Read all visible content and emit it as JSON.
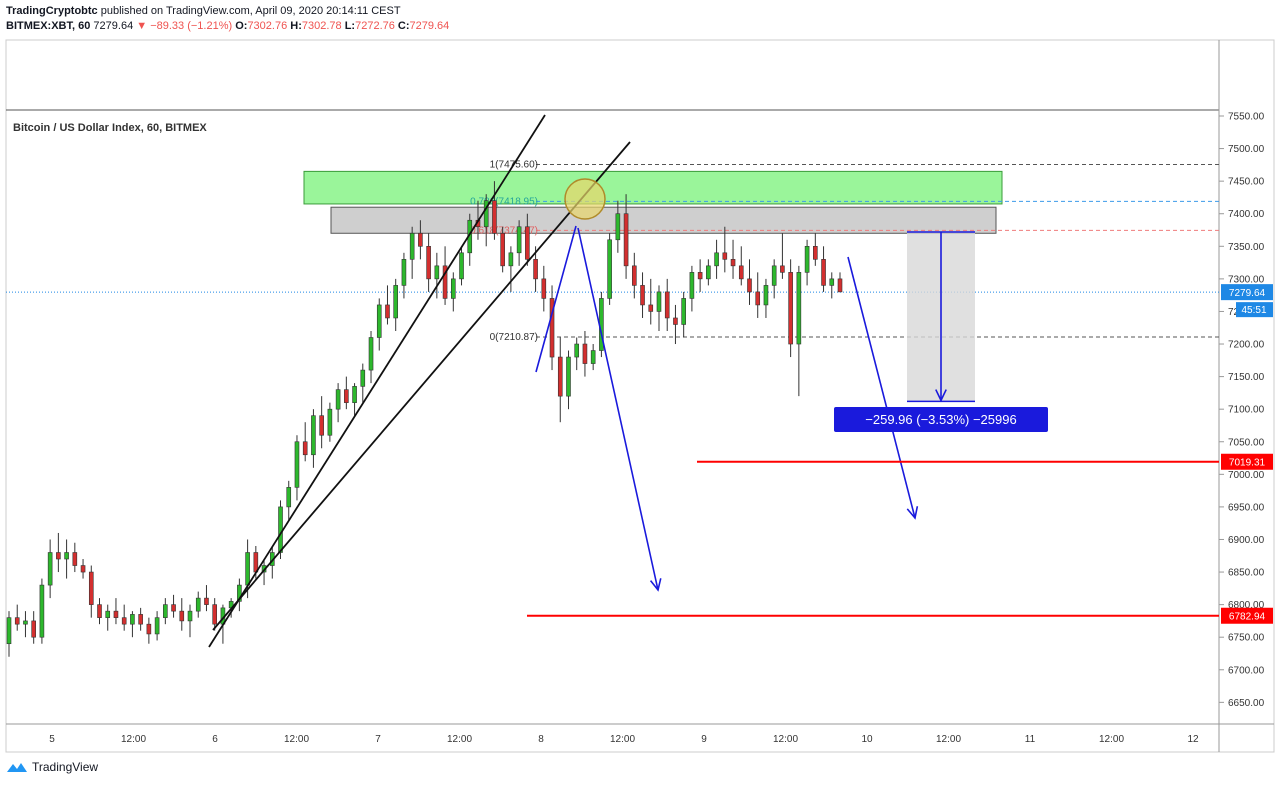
{
  "header": {
    "author": "TradingCryptobtc",
    "published": "published on TradingView.com, April 09, 2020 20:14:11 CEST",
    "symbol": "BITMEX:XBT, 60",
    "price": "7279.64",
    "change": "▼ −89.33 (−1.21%)",
    "o_label": "O:",
    "o_value": "7302.76",
    "h_label": "H:",
    "h_value": "7302.78",
    "l_label": "L:",
    "l_value": "7272.76",
    "c_label": "C:",
    "c_value": "7279.64"
  },
  "footer": {
    "brand": "TradingView"
  },
  "colors": {
    "up": "#2db82d",
    "down": "#d32f2f",
    "arrow": "#1a1adc",
    "support": "#ff0000",
    "zone_green": "#9af59a",
    "zone_gray": "#cfcfcf"
  },
  "chart_data": {
    "type": "candlestick",
    "title": "Bitcoin / US Dollar Index, 60, BITMEX",
    "ylim": [
      6610,
      7565
    ],
    "y_ticks": [
      "7550.00",
      "7500.00",
      "7450.00",
      "7400.00",
      "7350.00",
      "7300.00",
      "7250.00",
      "7200.00",
      "7150.00",
      "7100.00",
      "7050.00",
      "7000.00",
      "6950.00",
      "6900.00",
      "6850.00",
      "6800.00",
      "6750.00",
      "6700.00",
      "6650.00"
    ],
    "y_tick_values": [
      7550,
      7500,
      7450,
      7400,
      7350,
      7300,
      7250,
      7200,
      7150,
      7100,
      7050,
      7000,
      6950,
      6900,
      6850,
      6800,
      6750,
      6700,
      6650
    ],
    "x_labels": [
      "5",
      "12:00",
      "6",
      "12:00",
      "7",
      "12:00",
      "8",
      "12:00",
      "9",
      "12:00",
      "10",
      "12:00",
      "11",
      "12:00",
      "12"
    ],
    "x_label_days": [
      4.0,
      4.5,
      5.0,
      5.5,
      6.0,
      6.5,
      7.0,
      7.5,
      8.0,
      8.5,
      9.0,
      9.5,
      10.0,
      10.5,
      11.0
    ],
    "candles": [
      [
        6740,
        6790,
        6720,
        6780
      ],
      [
        6780,
        6800,
        6760,
        6770
      ],
      [
        6770,
        6790,
        6750,
        6775
      ],
      [
        6775,
        6790,
        6740,
        6750
      ],
      [
        6750,
        6840,
        6740,
        6830
      ],
      [
        6830,
        6900,
        6810,
        6880
      ],
      [
        6880,
        6910,
        6850,
        6870
      ],
      [
        6870,
        6900,
        6840,
        6880
      ],
      [
        6880,
        6895,
        6850,
        6860
      ],
      [
        6860,
        6870,
        6840,
        6850
      ],
      [
        6850,
        6860,
        6780,
        6800
      ],
      [
        6800,
        6810,
        6770,
        6780
      ],
      [
        6780,
        6800,
        6760,
        6790
      ],
      [
        6790,
        6810,
        6770,
        6780
      ],
      [
        6780,
        6800,
        6760,
        6770
      ],
      [
        6770,
        6790,
        6750,
        6785
      ],
      [
        6785,
        6795,
        6760,
        6770
      ],
      [
        6770,
        6780,
        6740,
        6755
      ],
      [
        6755,
        6790,
        6745,
        6780
      ],
      [
        6780,
        6810,
        6770,
        6800
      ],
      [
        6800,
        6815,
        6780,
        6790
      ],
      [
        6790,
        6810,
        6760,
        6775
      ],
      [
        6775,
        6800,
        6750,
        6790
      ],
      [
        6790,
        6820,
        6780,
        6810
      ],
      [
        6810,
        6830,
        6790,
        6800
      ],
      [
        6800,
        6810,
        6760,
        6770
      ],
      [
        6770,
        6800,
        6740,
        6795
      ],
      [
        6795,
        6810,
        6780,
        6805
      ],
      [
        6805,
        6840,
        6790,
        6830
      ],
      [
        6830,
        6900,
        6810,
        6880
      ],
      [
        6880,
        6890,
        6840,
        6850
      ],
      [
        6850,
        6870,
        6830,
        6860
      ],
      [
        6860,
        6890,
        6840,
        6880
      ],
      [
        6880,
        6960,
        6870,
        6950
      ],
      [
        6950,
        6990,
        6930,
        6980
      ],
      [
        6980,
        7060,
        6960,
        7050
      ],
      [
        7050,
        7080,
        7020,
        7030
      ],
      [
        7030,
        7100,
        7010,
        7090
      ],
      [
        7090,
        7120,
        7040,
        7060
      ],
      [
        7060,
        7110,
        7050,
        7100
      ],
      [
        7100,
        7140,
        7080,
        7130
      ],
      [
        7130,
        7150,
        7100,
        7110
      ],
      [
        7110,
        7140,
        7090,
        7135
      ],
      [
        7135,
        7170,
        7110,
        7160
      ],
      [
        7160,
        7220,
        7140,
        7210
      ],
      [
        7210,
        7270,
        7190,
        7260
      ],
      [
        7260,
        7290,
        7230,
        7240
      ],
      [
        7240,
        7300,
        7220,
        7290
      ],
      [
        7290,
        7340,
        7270,
        7330
      ],
      [
        7330,
        7380,
        7300,
        7370
      ],
      [
        7370,
        7390,
        7330,
        7350
      ],
      [
        7350,
        7370,
        7280,
        7300
      ],
      [
        7300,
        7340,
        7270,
        7320
      ],
      [
        7320,
        7350,
        7260,
        7270
      ],
      [
        7270,
        7310,
        7250,
        7300
      ],
      [
        7300,
        7350,
        7290,
        7340
      ],
      [
        7340,
        7400,
        7320,
        7390
      ],
      [
        7390,
        7420,
        7360,
        7380
      ],
      [
        7380,
        7430,
        7350,
        7420
      ],
      [
        7420,
        7450,
        7360,
        7370
      ],
      [
        7370,
        7380,
        7310,
        7320
      ],
      [
        7320,
        7350,
        7280,
        7340
      ],
      [
        7340,
        7390,
        7320,
        7380
      ],
      [
        7380,
        7400,
        7320,
        7330
      ],
      [
        7330,
        7350,
        7280,
        7300
      ],
      [
        7300,
        7320,
        7250,
        7270
      ],
      [
        7270,
        7290,
        7160,
        7180
      ],
      [
        7180,
        7210,
        7080,
        7120
      ],
      [
        7120,
        7190,
        7100,
        7180
      ],
      [
        7180,
        7210,
        7160,
        7200
      ],
      [
        7200,
        7220,
        7150,
        7170
      ],
      [
        7170,
        7200,
        7160,
        7190
      ],
      [
        7190,
        7280,
        7180,
        7270
      ],
      [
        7270,
        7370,
        7260,
        7360
      ],
      [
        7360,
        7420,
        7340,
        7400
      ],
      [
        7400,
        7430,
        7300,
        7320
      ],
      [
        7320,
        7340,
        7270,
        7290
      ],
      [
        7290,
        7310,
        7240,
        7260
      ],
      [
        7260,
        7300,
        7230,
        7250
      ],
      [
        7250,
        7290,
        7220,
        7280
      ],
      [
        7280,
        7300,
        7220,
        7240
      ],
      [
        7240,
        7260,
        7200,
        7230
      ],
      [
        7230,
        7280,
        7210,
        7270
      ],
      [
        7270,
        7320,
        7250,
        7310
      ],
      [
        7310,
        7330,
        7280,
        7300
      ],
      [
        7300,
        7330,
        7290,
        7320
      ],
      [
        7320,
        7360,
        7300,
        7340
      ],
      [
        7340,
        7380,
        7310,
        7330
      ],
      [
        7330,
        7360,
        7300,
        7320
      ],
      [
        7320,
        7350,
        7290,
        7300
      ],
      [
        7300,
        7330,
        7260,
        7280
      ],
      [
        7280,
        7310,
        7240,
        7260
      ],
      [
        7260,
        7300,
        7240,
        7290
      ],
      [
        7290,
        7330,
        7270,
        7320
      ],
      [
        7320,
        7370,
        7300,
        7310
      ],
      [
        7310,
        7330,
        7180,
        7200
      ],
      [
        7200,
        7320,
        7120,
        7310
      ],
      [
        7310,
        7360,
        7290,
        7350
      ],
      [
        7350,
        7370,
        7320,
        7330
      ],
      [
        7330,
        7350,
        7280,
        7290
      ],
      [
        7290,
        7310,
        7270,
        7300
      ],
      [
        7300,
        7310,
        7280,
        7280
      ]
    ],
    "annotations": {
      "fib_levels": [
        {
          "label": "1(7475.60)",
          "value": 7475.6
        },
        {
          "label": "0.786(7418.95)",
          "value": 7418.95
        },
        {
          "label": "0.618(7374.47)",
          "value": 7374.47
        },
        {
          "label": "0(7210.87)",
          "value": 7210.87
        }
      ],
      "resistance_zone_green": [
        7415,
        7465
      ],
      "resistance_zone_gray": [
        7370,
        7410
      ],
      "current_price": {
        "label": "7279.64",
        "value": 7279.64
      },
      "countdown": "45:51",
      "supports": [
        {
          "label": "7019.31",
          "value": 7019.31
        },
        {
          "label": "6782.94",
          "value": 6782.94
        }
      ],
      "measure": {
        "label": "−259.96 (−3.53%) −25996",
        "from": 7372,
        "to": 7112
      }
    }
  }
}
